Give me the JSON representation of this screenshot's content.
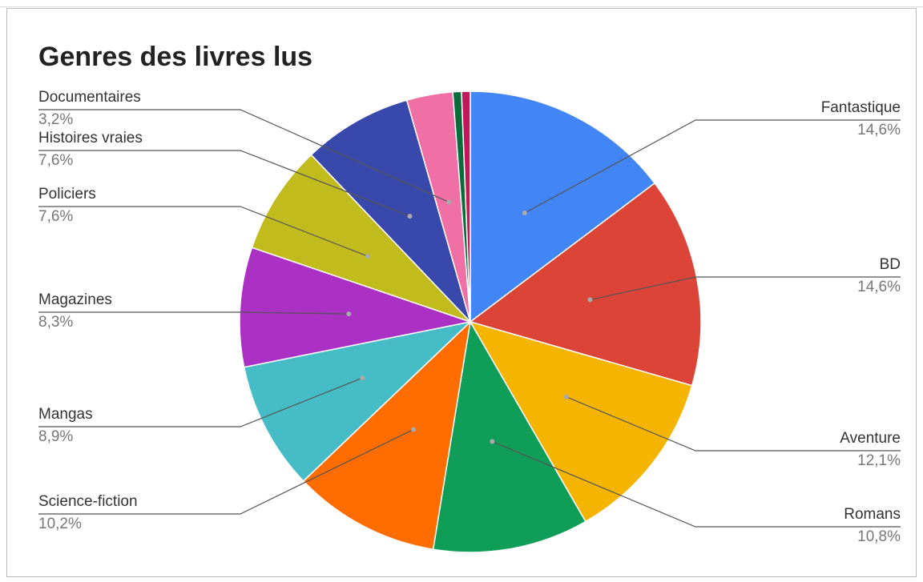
{
  "chart_data": {
    "type": "pie",
    "title": "Genres des livres lus",
    "start_angle_deg": 0,
    "direction": "clockwise",
    "slices": [
      {
        "label": "Fantastique",
        "value": 14.6,
        "value_label": "14,6%",
        "color": "#4285f4",
        "side": "right"
      },
      {
        "label": "BD",
        "value": 14.6,
        "value_label": "14,6%",
        "color": "#db4437",
        "side": "right"
      },
      {
        "label": "Aventure",
        "value": 12.1,
        "value_label": "12,1%",
        "color": "#f4b400",
        "side": "right"
      },
      {
        "label": "Romans",
        "value": 10.8,
        "value_label": "10,8%",
        "color": "#0f9d58",
        "side": "right"
      },
      {
        "label": "Science-fiction",
        "value": 10.2,
        "value_label": "10,2%",
        "color": "#ff6d00",
        "side": "left"
      },
      {
        "label": "Mangas",
        "value": 8.9,
        "value_label": "8,9%",
        "color": "#46bdc6",
        "side": "left"
      },
      {
        "label": "Magazines",
        "value": 8.3,
        "value_label": "8,3%",
        "color": "#ab30c4",
        "side": "left"
      },
      {
        "label": "Policiers",
        "value": 7.6,
        "value_label": "7,6%",
        "color": "#c2bb1e",
        "side": "left"
      },
      {
        "label": "Histoires vraies",
        "value": 7.6,
        "value_label": "7,6%",
        "color": "#3949ab",
        "side": "left"
      },
      {
        "label": "Documentaires",
        "value": 3.2,
        "value_label": "3,2%",
        "color": "#f06fa5",
        "side": "left"
      },
      {
        "label": "",
        "value": 0.6,
        "value_label": "",
        "color": "#0b6b3a",
        "side": "none"
      },
      {
        "label": "",
        "value": 0.6,
        "value_label": "",
        "color": "#c2185b",
        "side": "none"
      }
    ]
  }
}
